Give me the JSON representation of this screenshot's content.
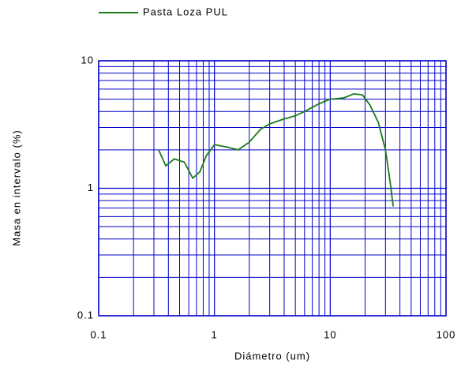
{
  "chart_data": {
    "type": "line",
    "xlabel": "Diámetro (um)",
    "ylabel": "Masa en intervalo (%)",
    "xscale": "log",
    "yscale": "log",
    "grid": true,
    "minor_grid": true,
    "grid_color": "#0000cc",
    "legend": "top-left",
    "xlim": [
      0.1,
      100
    ],
    "xticks": [
      0.1,
      1,
      10,
      100
    ],
    "ylim": [
      0.1,
      10
    ],
    "yticks": [
      0.1,
      1,
      10
    ],
    "series": [
      {
        "name": "Pasta Loza PUL",
        "color": "#1a7a1a",
        "x": [
          0.33,
          0.38,
          0.45,
          0.55,
          0.65,
          0.75,
          0.85,
          1.0,
          1.3,
          1.6,
          2.0,
          2.5,
          3.0,
          4.0,
          5.0,
          6.0,
          8.0,
          10,
          13,
          16,
          19,
          22,
          26,
          30,
          33,
          35
        ],
        "values": [
          2.0,
          1.5,
          1.7,
          1.6,
          1.2,
          1.35,
          1.8,
          2.2,
          2.1,
          2.0,
          2.3,
          2.9,
          3.2,
          3.5,
          3.7,
          4.0,
          4.6,
          5.0,
          5.1,
          5.5,
          5.4,
          4.5,
          3.3,
          2.0,
          1.1,
          0.72
        ]
      }
    ]
  }
}
